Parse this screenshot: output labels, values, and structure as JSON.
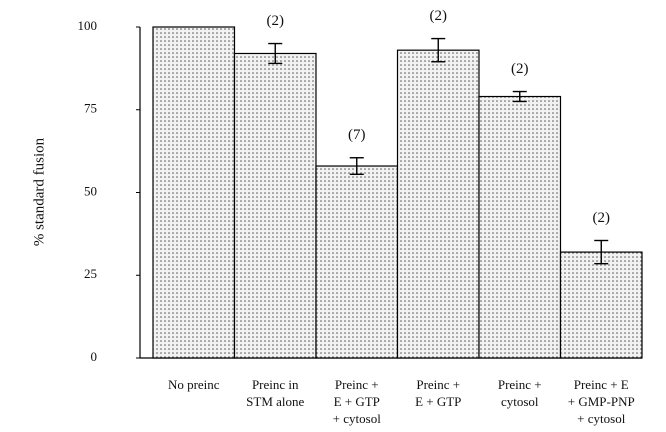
{
  "chart_data": {
    "type": "bar",
    "y_label": "% standard fusion",
    "categories": [
      [
        "No preinc"
      ],
      [
        "Preinc in",
        "STM alone"
      ],
      [
        "Preinc +",
        "E + GTP",
        "+ cytosol"
      ],
      [
        "Preinc +",
        "E + GTP"
      ],
      [
        "Preinc +",
        "cytosol"
      ],
      [
        "Preinc + E",
        "+ GMP-PNP",
        "+ cytosol"
      ]
    ],
    "values": [
      100,
      92,
      58,
      93,
      79,
      32
    ],
    "errors": [
      null,
      3,
      2.5,
      3.5,
      1.5,
      3.5
    ],
    "annotations": [
      null,
      "(2)",
      "(7)",
      "(2)",
      "(2)",
      "(2)"
    ],
    "ylim": [
      0,
      100
    ],
    "yticks": [
      0,
      25,
      50,
      75,
      100
    ],
    "grid": false
  }
}
